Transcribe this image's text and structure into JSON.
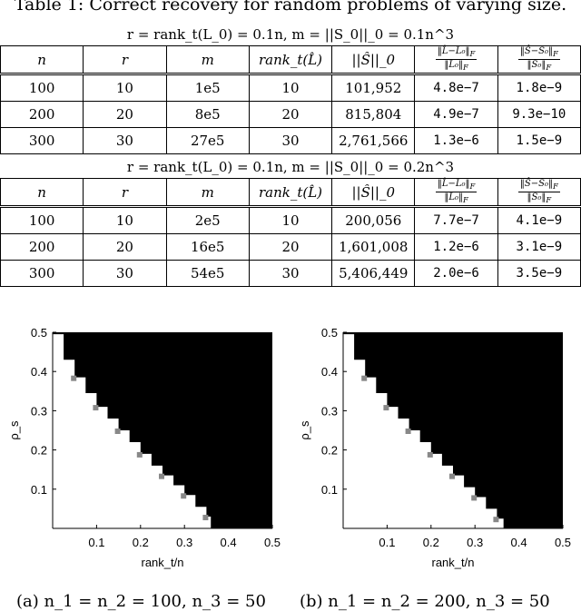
{
  "caption": "Table 1: Correct recovery for random problems of varying size.",
  "tables": [
    {
      "condition": "r = rank_t(L_0) = 0.1n, m = ||S_0||_0 = 0.1n^3",
      "headers": [
        "n",
        "r",
        "m",
        "rank_t(L̂)",
        "||Ŝ||_0",
        "||L̂−L_0||_F / ||L_0||_F",
        "||Ŝ−S_0||_F / ||S_0||_F"
      ],
      "rows": [
        [
          "100",
          "10",
          "1e5",
          "10",
          "101,952",
          "4.8e−7",
          "1.8e−9"
        ],
        [
          "200",
          "20",
          "8e5",
          "20",
          "815,804",
          "4.9e−7",
          "9.3e−10"
        ],
        [
          "300",
          "30",
          "27e5",
          "30",
          "2,761,566",
          "1.3e−6",
          "1.5e−9"
        ]
      ]
    },
    {
      "condition": "r = rank_t(L_0) = 0.1n, m = ||S_0||_0 = 0.2n^3",
      "headers": [
        "n",
        "r",
        "m",
        "rank_t(L̂)",
        "||Ŝ||_0",
        "||L̂−L_0||_F / ||L_0||_F",
        "||Ŝ−S_0||_F / ||S_0||_F"
      ],
      "rows": [
        [
          "100",
          "10",
          "2e5",
          "10",
          "200,056",
          "7.7e−7",
          "4.1e−9"
        ],
        [
          "200",
          "20",
          "16e5",
          "20",
          "1,601,008",
          "1.2e−6",
          "3.1e−9"
        ],
        [
          "300",
          "30",
          "54e5",
          "30",
          "5,406,449",
          "2.0e−6",
          "3.5e−9"
        ]
      ]
    }
  ],
  "chart_data": [
    {
      "type": "heatmap",
      "xlabel": "rank_t/n",
      "ylabel": "ρ_s",
      "xlim": [
        0,
        0.5
      ],
      "ylim": [
        0,
        0.5
      ],
      "xticks": [
        "0.1",
        "0.2",
        "0.3",
        "0.4",
        "0.5"
      ],
      "yticks": [
        "0.1",
        "0.2",
        "0.3",
        "0.4",
        "0.5"
      ],
      "boundary": [
        [
          0.0,
          0.495
        ],
        [
          0.025,
          0.43
        ],
        [
          0.05,
          0.385
        ],
        [
          0.075,
          0.345
        ],
        [
          0.1,
          0.31
        ],
        [
          0.125,
          0.28
        ],
        [
          0.15,
          0.25
        ],
        [
          0.175,
          0.22
        ],
        [
          0.2,
          0.19
        ],
        [
          0.225,
          0.16
        ],
        [
          0.25,
          0.135
        ],
        [
          0.275,
          0.11
        ],
        [
          0.3,
          0.085
        ],
        [
          0.325,
          0.055
        ],
        [
          0.35,
          0.03
        ],
        [
          0.36,
          0.0
        ]
      ],
      "caption": "(a) n_1 = n_2 = 100, n_3 = 50"
    },
    {
      "type": "heatmap",
      "xlabel": "rank_t/n",
      "ylabel": "ρ_s",
      "xlim": [
        0,
        0.5
      ],
      "ylim": [
        0,
        0.5
      ],
      "xticks": [
        "0.1",
        "0.2",
        "0.3",
        "0.4",
        "0.5"
      ],
      "yticks": [
        "0.1",
        "0.2",
        "0.3",
        "0.4",
        "0.5"
      ],
      "boundary": [
        [
          0.0,
          0.495
        ],
        [
          0.025,
          0.43
        ],
        [
          0.05,
          0.385
        ],
        [
          0.075,
          0.345
        ],
        [
          0.1,
          0.31
        ],
        [
          0.125,
          0.28
        ],
        [
          0.15,
          0.25
        ],
        [
          0.175,
          0.22
        ],
        [
          0.2,
          0.19
        ],
        [
          0.225,
          0.16
        ],
        [
          0.25,
          0.135
        ],
        [
          0.275,
          0.105
        ],
        [
          0.3,
          0.08
        ],
        [
          0.325,
          0.05
        ],
        [
          0.35,
          0.025
        ],
        [
          0.365,
          0.0
        ]
      ],
      "caption": "(b) n_1 = n_2 = 200, n_3 = 50"
    }
  ]
}
